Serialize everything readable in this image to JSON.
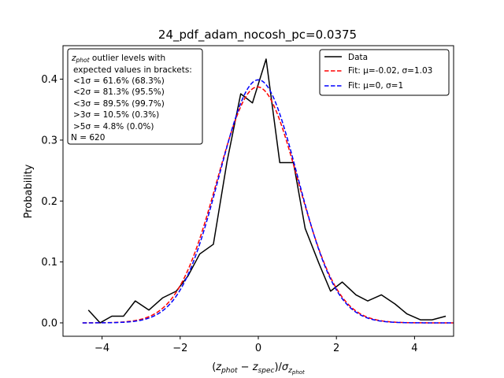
{
  "chart_data": {
    "type": "line",
    "title": "24_pdf_adam_nocosh_pc=0.0375",
    "xlabel": "(z_phot − z_spec)/σ_z_phot",
    "ylabel": "Probability",
    "xlim": [
      -5.0,
      5.0
    ],
    "ylim": [
      -0.022,
      0.455
    ],
    "x_ticks": [
      -4,
      -2,
      0,
      2,
      4
    ],
    "y_ticks": [
      0.0,
      0.1,
      0.2,
      0.3,
      0.4
    ],
    "x_tick_labels": [
      "−4",
      "−2",
      "0",
      "2",
      "4"
    ],
    "y_tick_labels": [
      "0.0",
      "0.1",
      "0.2",
      "0.3",
      "0.4"
    ],
    "grid": false,
    "legend_position": "top-right",
    "series": [
      {
        "name": "Data",
        "color": "#000000",
        "style": "solid",
        "x": [
          -4.35,
          -4.05,
          -3.75,
          -3.45,
          -3.15,
          -2.8,
          -2.45,
          -2.1,
          -1.8,
          -1.5,
          -1.15,
          -0.8,
          -0.45,
          -0.15,
          0.2,
          0.55,
          0.9,
          1.2,
          1.55,
          1.85,
          2.15,
          2.5,
          2.8,
          3.15,
          3.5,
          3.8,
          4.15,
          4.45,
          4.8
        ],
        "y": [
          0.021,
          0.0,
          0.011,
          0.011,
          0.036,
          0.021,
          0.041,
          0.052,
          0.077,
          0.113,
          0.129,
          0.265,
          0.376,
          0.361,
          0.433,
          0.263,
          0.263,
          0.155,
          0.098,
          0.052,
          0.067,
          0.046,
          0.036,
          0.046,
          0.031,
          0.015,
          0.005,
          0.005,
          0.011
        ]
      },
      {
        "name": "Fit: μ=-0.02, σ=1.03",
        "color": "#ff0000",
        "style": "dashed",
        "mu": -0.02,
        "sigma": 1.03
      },
      {
        "name": "Fit: μ=0, σ=1",
        "color": "#0000ff",
        "style": "dashed",
        "mu": 0,
        "sigma": 1
      }
    ],
    "stats_box": {
      "lines": [
        "z_phot outlier levels with",
        "expected values in brackets:",
        "<1σ = 61.6% (68.3%)",
        "<2σ = 81.3% (95.5%)",
        "<3σ = 89.5% (99.7%)",
        ">3σ = 10.5% (0.3%)",
        ">5σ = 4.8% (0.0%)",
        "N = 620"
      ]
    },
    "fit_range": [
      -4.5,
      5.0
    ]
  }
}
